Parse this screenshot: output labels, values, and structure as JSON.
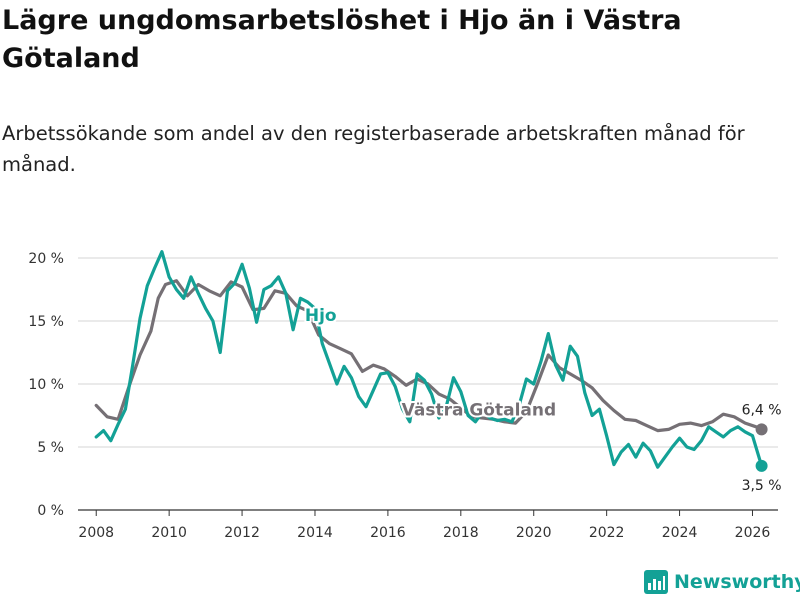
{
  "title": "Lägre ungdomsarbetslöshet i Hjo än i Västra Götaland",
  "subtitle": "Arbetssökande som andel av den registerbaserade arbetskraften månad för månad.",
  "brand": "Newsworthy",
  "colors": {
    "hjo": "#13a196",
    "vg": "#757075",
    "grid": "#d6d6d6",
    "axis": "#333333"
  },
  "chart_data": {
    "type": "line",
    "title": "Lägre ungdomsarbetslöshet i Hjo än i Västra Götaland",
    "xlabel": "",
    "ylabel": "",
    "xlim": [
      2007.5,
      2026.7
    ],
    "ylim": [
      0,
      20
    ],
    "y_ticks": [
      0,
      5,
      10,
      15,
      20
    ],
    "y_tick_labels": [
      "0 %",
      "5 %",
      "10 %",
      "15 %",
      "20 %"
    ],
    "x_ticks": [
      2008,
      2010,
      2012,
      2014,
      2016,
      2018,
      2020,
      2022,
      2024,
      2026
    ],
    "x_tick_labels": [
      "2008",
      "2010",
      "2012",
      "2014",
      "2016",
      "2018",
      "2020",
      "2022",
      "2024",
      "2026"
    ],
    "grid": true,
    "series": [
      {
        "name": "Västra Götaland",
        "label": "Västra Götaland",
        "color": "#757075",
        "end_label": "6,4 %",
        "x": [
          2008.0,
          2008.3,
          2008.6,
          2008.9,
          2009.2,
          2009.5,
          2009.7,
          2009.9,
          2010.2,
          2010.5,
          2010.8,
          2011.1,
          2011.4,
          2011.7,
          2012.0,
          2012.3,
          2012.6,
          2012.9,
          2013.2,
          2013.5,
          2013.8,
          2014.1,
          2014.4,
          2014.7,
          2015.0,
          2015.3,
          2015.6,
          2015.9,
          2016.2,
          2016.5,
          2016.8,
          2017.1,
          2017.4,
          2017.7,
          2018.0,
          2018.3,
          2018.6,
          2018.9,
          2019.2,
          2019.5,
          2019.8,
          2020.1,
          2020.4,
          2020.7,
          2021.0,
          2021.3,
          2021.6,
          2021.9,
          2022.2,
          2022.5,
          2022.8,
          2023.1,
          2023.4,
          2023.7,
          2024.0,
          2024.3,
          2024.6,
          2024.9,
          2025.2,
          2025.5,
          2025.8,
          2026.1,
          2026.25
        ],
        "y": [
          8.3,
          7.4,
          7.2,
          9.8,
          12.3,
          14.2,
          16.8,
          17.9,
          18.2,
          17.0,
          17.9,
          17.4,
          17.0,
          18.1,
          17.7,
          15.9,
          16.0,
          17.4,
          17.2,
          16.2,
          15.8,
          13.9,
          13.2,
          12.8,
          12.4,
          11.0,
          11.5,
          11.2,
          10.6,
          9.9,
          10.4,
          10.0,
          9.2,
          8.8,
          8.1,
          7.4,
          7.3,
          7.2,
          7.0,
          6.9,
          7.8,
          10.0,
          12.3,
          11.3,
          10.8,
          10.3,
          9.7,
          8.7,
          7.9,
          7.2,
          7.1,
          6.7,
          6.3,
          6.4,
          6.8,
          6.9,
          6.7,
          7.0,
          7.6,
          7.4,
          6.9,
          6.6,
          6.4
        ]
      },
      {
        "name": "Hjo",
        "label": "Hjo",
        "color": "#13a196",
        "end_label": "3,5 %",
        "x": [
          2008.0,
          2008.2,
          2008.4,
          2008.6,
          2008.8,
          2009.0,
          2009.2,
          2009.4,
          2009.6,
          2009.8,
          2010.0,
          2010.2,
          2010.4,
          2010.6,
          2010.8,
          2011.0,
          2011.2,
          2011.4,
          2011.6,
          2011.8,
          2012.0,
          2012.2,
          2012.4,
          2012.6,
          2012.8,
          2013.0,
          2013.2,
          2013.4,
          2013.6,
          2013.8,
          2014.0,
          2014.2,
          2014.4,
          2014.6,
          2014.8,
          2015.0,
          2015.2,
          2015.4,
          2015.6,
          2015.8,
          2016.0,
          2016.2,
          2016.4,
          2016.6,
          2016.8,
          2017.0,
          2017.2,
          2017.4,
          2017.6,
          2017.8,
          2018.0,
          2018.2,
          2018.4,
          2018.6,
          2018.8,
          2019.0,
          2019.2,
          2019.4,
          2019.6,
          2019.8,
          2020.0,
          2020.2,
          2020.4,
          2020.6,
          2020.8,
          2021.0,
          2021.2,
          2021.4,
          2021.6,
          2021.8,
          2022.0,
          2022.2,
          2022.4,
          2022.6,
          2022.8,
          2023.0,
          2023.2,
          2023.4,
          2023.6,
          2023.8,
          2024.0,
          2024.2,
          2024.4,
          2024.6,
          2024.8,
          2025.0,
          2025.2,
          2025.4,
          2025.6,
          2025.8,
          2026.0,
          2026.25
        ],
        "y": [
          5.8,
          6.3,
          5.5,
          6.8,
          8.0,
          11.5,
          15.2,
          17.8,
          19.2,
          20.5,
          18.5,
          17.5,
          16.8,
          18.5,
          17.2,
          16.0,
          15.0,
          12.5,
          17.4,
          18.0,
          19.5,
          17.6,
          14.9,
          17.5,
          17.8,
          18.5,
          17.2,
          14.3,
          16.8,
          16.5,
          16.0,
          13.2,
          11.6,
          10.0,
          11.4,
          10.5,
          9.0,
          8.2,
          9.5,
          10.8,
          10.9,
          9.8,
          8.0,
          7.0,
          10.8,
          10.3,
          9.2,
          7.3,
          8.2,
          10.5,
          9.4,
          7.5,
          7.0,
          7.8,
          7.3,
          7.1,
          7.2,
          7.0,
          8.3,
          10.4,
          10.0,
          11.8,
          14.0,
          11.5,
          10.3,
          13.0,
          12.2,
          9.3,
          7.5,
          8.0,
          5.9,
          3.6,
          4.6,
          5.2,
          4.2,
          5.3,
          4.7,
          3.4,
          4.2,
          5.0,
          5.7,
          5.0,
          4.8,
          5.5,
          6.6,
          6.2,
          5.8,
          6.3,
          6.6,
          6.2,
          5.9,
          3.5
        ]
      }
    ]
  }
}
